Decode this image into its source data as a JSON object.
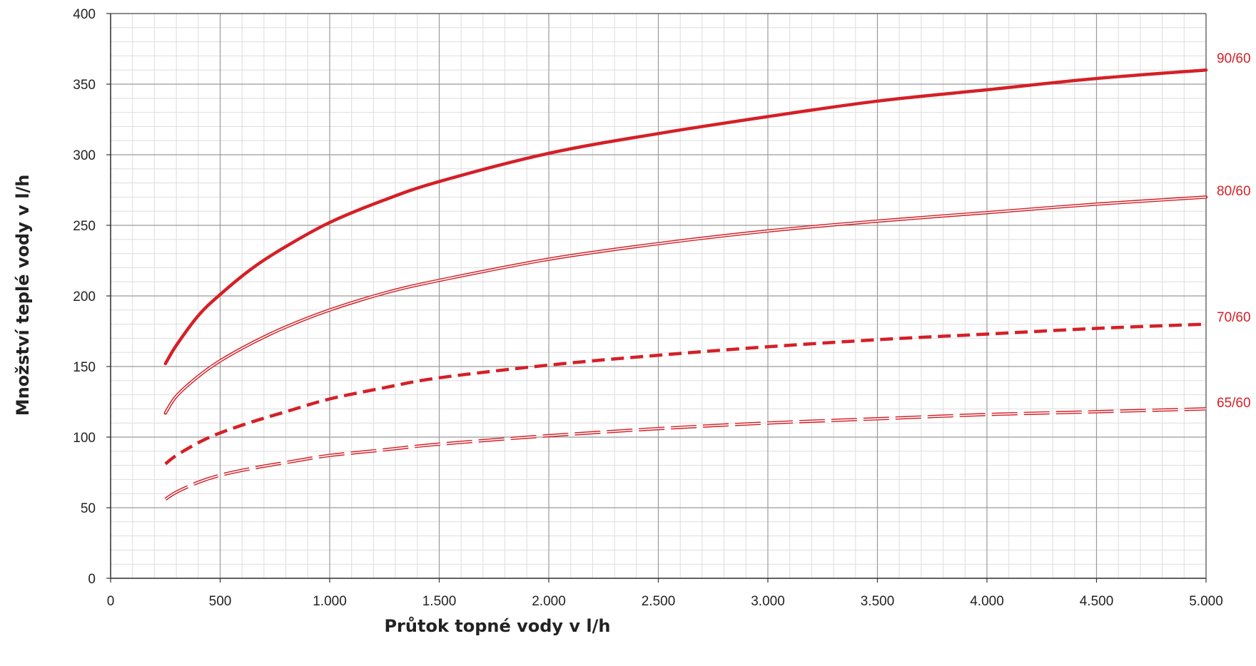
{
  "chart_data": {
    "type": "line",
    "title": "",
    "xlabel": "Průtok topné vody v l/h",
    "ylabel": "Množství teplé vody v l/h",
    "xlim": [
      0,
      5000
    ],
    "ylim": [
      0,
      400
    ],
    "x_ticks": [
      0,
      500,
      1000,
      1500,
      2000,
      2500,
      3000,
      3500,
      4000,
      4500,
      5000
    ],
    "x_tick_labels": [
      "0",
      "500",
      "1.000",
      "1.500",
      "2.000",
      "2.500",
      "3.000",
      "3.500",
      "4.000",
      "4.500",
      "5.000"
    ],
    "y_ticks": [
      0,
      50,
      100,
      150,
      200,
      250,
      300,
      350,
      400
    ],
    "y_tick_labels": [
      "0",
      "50",
      "100",
      "150",
      "200",
      "250",
      "300",
      "350",
      "400"
    ],
    "grid": true,
    "legend": "labels at right end of each line",
    "series_color": "#d42027",
    "grid_major_color": "#9a9a9a",
    "grid_minor_color": "#dddddd",
    "series": [
      {
        "name": "90/60",
        "style": "thick-solid",
        "x": [
          250,
          300,
          400,
          500,
          650,
          800,
          1000,
          1250,
          1500,
          2000,
          2500,
          3000,
          3500,
          4000,
          4500,
          5000
        ],
        "y": [
          152,
          165,
          186,
          201,
          220,
          235,
          252,
          268,
          281,
          301,
          315,
          327,
          338,
          346,
          354,
          360
        ]
      },
      {
        "name": "80/60",
        "style": "double-solid",
        "x": [
          250,
          300,
          400,
          500,
          650,
          800,
          1000,
          1250,
          1500,
          2000,
          2500,
          3000,
          3500,
          4000,
          4500,
          5000
        ],
        "y": [
          117,
          129,
          143,
          154,
          167,
          178,
          190,
          202,
          211,
          226,
          237,
          246,
          253,
          259,
          265,
          270
        ]
      },
      {
        "name": "70/60",
        "style": "thick-dashed",
        "x": [
          250,
          300,
          400,
          500,
          650,
          800,
          1000,
          1250,
          1500,
          2000,
          2500,
          3000,
          3500,
          4000,
          4500,
          5000
        ],
        "y": [
          81,
          87,
          96,
          103,
          111,
          118,
          127,
          135,
          142,
          151,
          158,
          164,
          169,
          173,
          177,
          180
        ]
      },
      {
        "name": "65/60",
        "style": "double-dashed",
        "x": [
          250,
          300,
          400,
          500,
          650,
          800,
          1000,
          1250,
          1500,
          2000,
          2500,
          3000,
          3500,
          4000,
          4500,
          5000
        ],
        "y": [
          56,
          61,
          68,
          73,
          78,
          82,
          87,
          91,
          95,
          101,
          106,
          110,
          113,
          116,
          118,
          120
        ]
      }
    ]
  }
}
